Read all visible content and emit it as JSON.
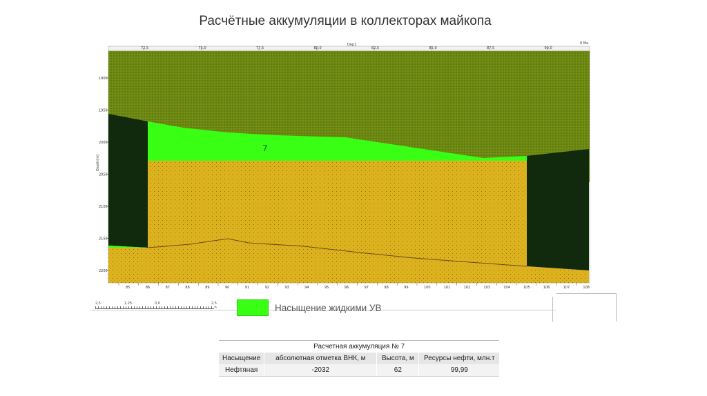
{
  "title": "Расчётные аккумуляции в коллекторах майкопа",
  "section": {
    "top_ticks": [
      "72,5",
      "75,0",
      "77,5",
      "80,0",
      "82,5",
      "85,0",
      "87,5",
      "90,0"
    ],
    "top_axis_label": "Dep1",
    "top_right_label": "0 Ma",
    "y_axis_label": "Depth(m)",
    "depth_ticks": [
      "1900",
      "1950",
      "2000",
      "2050",
      "2100",
      "2150",
      "2200"
    ],
    "bottom_ticks": [
      "85",
      "86",
      "87",
      "88",
      "89",
      "90",
      "91",
      "92",
      "93",
      "94",
      "95",
      "96",
      "97",
      "98",
      "99",
      "100",
      "101",
      "102",
      "103",
      "104",
      "105",
      "106",
      "107",
      "108"
    ],
    "accumulation_label": "7",
    "colors": {
      "overburden": "#6e8a12",
      "oil": "#39ff14",
      "reservoir": "#ddb21f",
      "fault_block": "#112a0d"
    }
  },
  "scale_bar": {
    "labels": [
      "2,5",
      "1,25",
      "0,0",
      "2,5 km"
    ]
  },
  "legend": {
    "label": "Насыщение жидкими УВ",
    "color": "#39ff14"
  },
  "table": {
    "caption": "Расчетная аккумуляция № 7",
    "headers": [
      "Насыщение",
      "абсолютная отметка ВНК, м",
      "Высота, м",
      "Ресурсы нефти, млн.т"
    ],
    "rows": [
      [
        "Нефтяная",
        "-2032",
        "62",
        "99,99"
      ]
    ]
  }
}
